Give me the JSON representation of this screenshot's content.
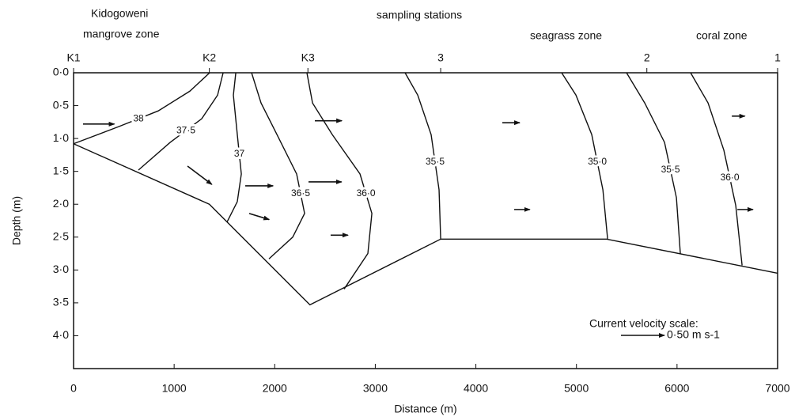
{
  "chart_data": {
    "type": "contour",
    "title": "sampling stations",
    "zones": [
      "Kidogoweni",
      "mangrove zone",
      "seagrass zone",
      "coral zone"
    ],
    "x_label": "Distance (m)",
    "y_label": "Depth (m)",
    "xlim": [
      0,
      7000
    ],
    "ylim": [
      0,
      4.5
    ],
    "y_inverted": true,
    "xticks": [
      0,
      1000,
      2000,
      3000,
      4000,
      5000,
      6000,
      7000
    ],
    "yticks": [
      {
        "value": 0,
        "label": "0·0"
      },
      {
        "value": 0.5,
        "label": "0·5"
      },
      {
        "value": 1,
        "label": "1·0"
      },
      {
        "value": 1.5,
        "label": "1·5"
      },
      {
        "value": 2,
        "label": "2·0"
      },
      {
        "value": 2.5,
        "label": "2·5"
      },
      {
        "value": 3,
        "label": "3·0"
      },
      {
        "value": 3.5,
        "label": "3·5"
      },
      {
        "value": 4,
        "label": "4·0"
      }
    ],
    "stations": [
      {
        "name": "K1",
        "x": 0
      },
      {
        "name": "K2",
        "x": 1350
      },
      {
        "name": "K3",
        "x": 2330
      },
      {
        "name": "3",
        "x": 3650
      },
      {
        "name": "2",
        "x": 5700
      },
      {
        "name": "1",
        "x": 7000
      }
    ],
    "bottom": {
      "x": [
        0,
        1350,
        2350,
        3650,
        5300,
        7000
      ],
      "y": [
        1.08,
        2.0,
        3.53,
        2.53,
        2.53,
        3.05
      ]
    },
    "contours": [
      {
        "value": 38,
        "label": "38",
        "x": [
          0,
          448,
          842,
          1156,
          1353
        ],
        "y": [
          1.08,
          0.82,
          0.58,
          0.28,
          0
        ]
      },
      {
        "value": 37.5,
        "label": "37·5",
        "x": [
          645,
          960,
          1274,
          1432,
          1487
        ],
        "y": [
          1.48,
          1.06,
          0.7,
          0.34,
          0
        ]
      },
      {
        "value": 37,
        "label": "37",
        "x": [
          1526,
          1628,
          1668,
          1628,
          1589,
          1613
        ],
        "y": [
          2.27,
          1.96,
          1.54,
          0.94,
          0.34,
          0
        ]
      },
      {
        "value": 36.5,
        "label": "36·5",
        "x": [
          1943,
          2179,
          2297,
          2218,
          2022,
          1864,
          1770
        ],
        "y": [
          2.83,
          2.5,
          2.14,
          1.54,
          0.94,
          0.46,
          0
        ]
      },
      {
        "value": 36,
        "label": "36·0",
        "x": [
          2690,
          2926,
          2966,
          2848,
          2572,
          2376,
          2320
        ],
        "y": [
          3.29,
          2.75,
          2.14,
          1.54,
          0.94,
          0.46,
          0
        ]
      },
      {
        "value": 35.5,
        "label": "35·5",
        "x": [
          3650,
          3634,
          3555,
          3422,
          3296
        ],
        "y": [
          2.53,
          1.78,
          0.94,
          0.34,
          0
        ]
      },
      {
        "value": 35,
        "label": "35·0",
        "x": [
          5310,
          5263,
          5152,
          4995,
          4853
        ],
        "y": [
          2.53,
          1.78,
          0.94,
          0.34,
          0
        ]
      },
      {
        "value": 35.5,
        "label": "35·5",
        "x": [
          6033,
          5994,
          5876,
          5679,
          5498
        ],
        "y": [
          2.75,
          1.9,
          1.06,
          0.46,
          0
        ]
      },
      {
        "value": 36,
        "label": "36·0",
        "x": [
          6647,
          6584,
          6466,
          6309,
          6135
        ],
        "y": [
          2.93,
          2.02,
          1.18,
          0.46,
          0
        ]
      }
    ],
    "vectors": [
      {
        "x": 94,
        "y": 0.78,
        "speed": 0.36,
        "direction": 0
      },
      {
        "x": 2399,
        "y": 0.73,
        "speed": 0.31,
        "direction": 0
      },
      {
        "x": 4263,
        "y": 0.76,
        "speed": 0.2,
        "direction": 0
      },
      {
        "x": 1133,
        "y": 1.42,
        "speed": 0.35,
        "direction": 37
      },
      {
        "x": 1707,
        "y": 1.72,
        "speed": 0.32,
        "direction": 0
      },
      {
        "x": 2336,
        "y": 1.66,
        "speed": 0.38,
        "direction": 0
      },
      {
        "x": 1746,
        "y": 2.14,
        "speed": 0.24,
        "direction": 17
      },
      {
        "x": 2556,
        "y": 2.47,
        "speed": 0.2,
        "direction": 0
      },
      {
        "x": 4381,
        "y": 2.08,
        "speed": 0.18,
        "direction": 0
      },
      {
        "x": 6600,
        "y": 2.08,
        "speed": 0.18,
        "direction": 0
      },
      {
        "x": 6545,
        "y": 0.66,
        "speed": 0.15,
        "direction": 0
      }
    ],
    "scale_label": "Current velocity scale:",
    "scale_speed": 0.5,
    "scale_speed_label": "0·50 m s-1"
  }
}
